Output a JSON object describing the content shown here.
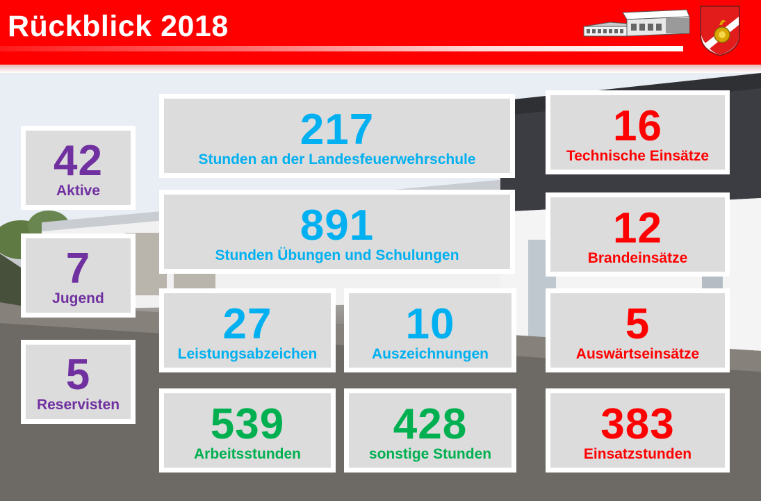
{
  "header": {
    "title": "Rückblick 2018",
    "building_logo_icon": "fire-station-building-icon",
    "crest_icon": "fire-brigade-crest-icon"
  },
  "colors": {
    "header_red": "#ff0000",
    "personnel_purple": "#7030a0",
    "training_blue": "#00b0f0",
    "operations_red": "#ff0000",
    "hours_green": "#00b050",
    "tile_bg": "#dcdcdc"
  },
  "personnel": [
    {
      "value": "42",
      "label": "Aktive"
    },
    {
      "value": "7",
      "label": "Jugend"
    },
    {
      "value": "5",
      "label": "Reservisten"
    }
  ],
  "training": {
    "school_hours": {
      "value": "217",
      "label": "Stunden an der Landesfeuerwehrschule"
    },
    "exercise_hours": {
      "value": "891",
      "label": "Stunden Übungen und Schulungen"
    },
    "badges": {
      "value": "27",
      "label": "Leistungsabzeichen"
    },
    "awards": {
      "value": "10",
      "label": "Auszeichnungen"
    }
  },
  "work": {
    "work_hours": {
      "value": "539",
      "label": "Arbeitsstunden"
    },
    "other_hours": {
      "value": "428",
      "label": "sonstige Stunden"
    }
  },
  "operations": [
    {
      "value": "16",
      "label": "Technische Einsätze"
    },
    {
      "value": "12",
      "label": "Brandeinsätze"
    },
    {
      "value": "5",
      "label": "Auswärtseinsätze"
    },
    {
      "value": "383",
      "label": "Einsatzstunden"
    }
  ]
}
